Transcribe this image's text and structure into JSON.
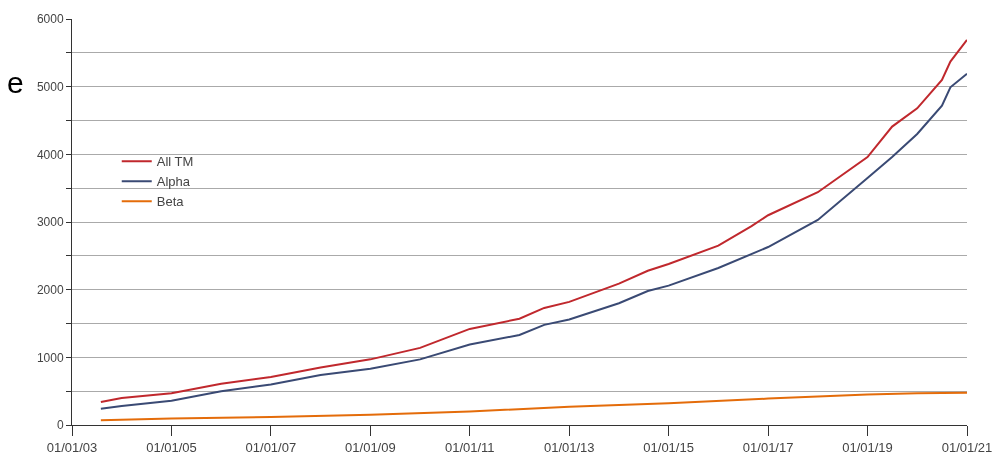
{
  "chart_data": {
    "type": "line",
    "annotations": [
      "e"
    ],
    "series": [
      {
        "name": "All TM",
        "color": "#c0282d",
        "x": [
          "2003-08-01",
          "2004-01-01",
          "2005-01-01",
          "2006-01-01",
          "2007-01-01",
          "2008-01-01",
          "2009-01-01",
          "2010-01-01",
          "2011-01-01",
          "2012-01-01",
          "2012-07-01",
          "2013-01-01",
          "2014-01-01",
          "2014-08-01",
          "2015-01-01",
          "2016-01-01",
          "2016-09-01",
          "2017-01-01",
          "2018-01-01",
          "2019-01-01",
          "2019-07-01",
          "2020-01-01",
          "2020-07-01",
          "2020-09-01",
          "2021-01-01"
        ],
        "values": [
          340,
          400,
          470,
          610,
          710,
          850,
          970,
          1140,
          1420,
          1570,
          1730,
          1820,
          2090,
          2280,
          2380,
          2650,
          2940,
          3100,
          3440,
          3960,
          4410,
          4680,
          5100,
          5370,
          5690
        ]
      },
      {
        "name": "Alpha",
        "color": "#3a4a74",
        "x": [
          "2003-08-01",
          "2004-01-01",
          "2005-01-01",
          "2006-01-01",
          "2007-01-01",
          "2008-01-01",
          "2009-01-01",
          "2010-01-01",
          "2011-01-01",
          "2012-01-01",
          "2012-07-01",
          "2013-01-01",
          "2014-01-01",
          "2014-08-01",
          "2015-01-01",
          "2016-01-01",
          "2017-01-01",
          "2018-01-01",
          "2019-01-01",
          "2019-07-01",
          "2020-01-01",
          "2020-07-01",
          "2020-09-01",
          "2021-01-01"
        ],
        "values": [
          240,
          280,
          360,
          500,
          600,
          740,
          830,
          970,
          1190,
          1330,
          1480,
          1560,
          1800,
          1980,
          2060,
          2320,
          2630,
          3030,
          3650,
          3960,
          4300,
          4720,
          4990,
          5190
        ]
      },
      {
        "name": "Beta",
        "color": "#e46c0a",
        "x": [
          "2003-08-01",
          "2005-01-01",
          "2007-01-01",
          "2009-01-01",
          "2011-01-01",
          "2013-01-01",
          "2015-01-01",
          "2017-01-01",
          "2019-01-01",
          "2020-01-01",
          "2021-01-01"
        ],
        "values": [
          70,
          95,
          120,
          150,
          200,
          270,
          320,
          390,
          450,
          470,
          475
        ]
      }
    ],
    "xlim": [
      "2003-01-01",
      "2021-01-01"
    ],
    "xticks": [
      {
        "value": "2003-01-01",
        "label": "01/01/03"
      },
      {
        "value": "2005-01-01",
        "label": "01/01/05"
      },
      {
        "value": "2007-01-01",
        "label": "01/01/07"
      },
      {
        "value": "2009-01-01",
        "label": "01/01/09"
      },
      {
        "value": "2011-01-01",
        "label": "01/01/11"
      },
      {
        "value": "2013-01-01",
        "label": "01/01/13"
      },
      {
        "value": "2015-01-01",
        "label": "01/01/15"
      },
      {
        "value": "2017-01-01",
        "label": "01/01/17"
      },
      {
        "value": "2019-01-01",
        "label": "01/01/19"
      },
      {
        "value": "2021-01-01",
        "label": "01/01/21"
      }
    ],
    "ylim": [
      0,
      6000
    ],
    "yticks": [
      0,
      {
        "value": 500,
        "label": null
      },
      1000,
      {
        "value": 1500,
        "label": null
      },
      2000,
      {
        "value": 2500,
        "label": null
      },
      3000,
      {
        "value": 3500,
        "label": null
      },
      4000,
      {
        "value": 4500,
        "label": null
      },
      5000,
      {
        "value": 5500,
        "label": null
      },
      6000
    ],
    "grid": "y",
    "legend": "left",
    "marker": "none",
    "line_style": "solid"
  }
}
